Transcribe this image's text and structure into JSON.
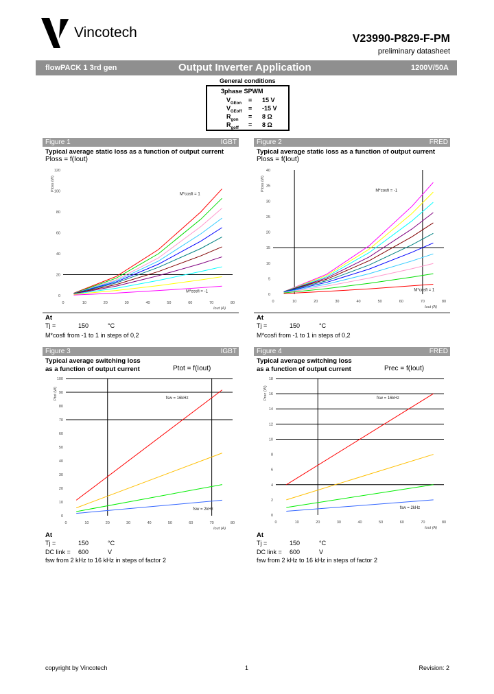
{
  "header": {
    "brand": "Vincotech",
    "part_number": "V23990-P829-F-PM",
    "doc_status": "preliminary datasheet",
    "band_left": "flowPACK 1 3rd gen",
    "band_center": "Output Inverter Application",
    "band_right": "1200V/50A"
  },
  "conditions": {
    "title": "General conditions",
    "mode": "3phase SPWM",
    "rows": [
      {
        "sym": "V",
        "sub": "GEon",
        "eq": "=",
        "val": "15 V"
      },
      {
        "sym": "V",
        "sub": "GEoff",
        "eq": "=",
        "val": "-15 V"
      },
      {
        "sym": "R",
        "sub": "gon",
        "eq": "=",
        "val": "8 Ω"
      },
      {
        "sym": "R",
        "sub": "goff",
        "eq": "=",
        "val": "8 Ω"
      }
    ]
  },
  "figures": [
    {
      "label": "Figure 1",
      "device": "IGBT",
      "title1": "Typical average static loss as a function of output current",
      "title2": "",
      "formula": "Ploss = f(Iout)",
      "at": "At",
      "t_label": "Tj =",
      "t_val": "150",
      "t_unit": "°C",
      "dc_label": "",
      "dc_val": "",
      "dc_unit": "",
      "note": "M*cosfi from -1 to 1 in steps of 0,2"
    },
    {
      "label": "Figure 2",
      "device": "FRED",
      "title1": "Typical average static loss as a function of output current",
      "title2": "",
      "formula": "Ploss = f(Iout)",
      "at": "At",
      "t_label": "Tj =",
      "t_val": "150",
      "t_unit": "°C",
      "dc_label": "",
      "dc_val": "",
      "dc_unit": "",
      "note": "M*cosfi from -1 to 1 in steps of 0,2"
    },
    {
      "label": "Figure 3",
      "device": "IGBT",
      "title1": "Typical average switching loss",
      "title2": "as a function of output current",
      "formula": "Ptot = f(Iout)",
      "at": "At",
      "t_label": "Tj =",
      "t_val": "150",
      "t_unit": "°C",
      "dc_label": "DC link =",
      "dc_val": "600",
      "dc_unit": "V",
      "note": "fsw from 2 kHz to 16 kHz in steps of factor 2"
    },
    {
      "label": "Figure 4",
      "device": "FRED",
      "title1": "Typical average switching loss",
      "title2": "as a function of output current",
      "formula": "Prec = f(Iout)",
      "at": "At",
      "t_label": "Tj =",
      "t_val": "150",
      "t_unit": "°C",
      "dc_label": "DC link =",
      "dc_val": "600",
      "dc_unit": "V",
      "note": "fsw from 2 kHz to 16 kHz in steps of factor 2"
    }
  ],
  "chart_data": [
    {
      "type": "line",
      "xlabel": "Iout (A)",
      "ylabel": "Ploss (W)",
      "xlim": [
        0,
        80
      ],
      "ylim": [
        0,
        120
      ],
      "xticks": [
        0,
        10,
        20,
        30,
        40,
        50,
        60,
        70,
        80
      ],
      "yticks": [
        0,
        20,
        40,
        60,
        80,
        100,
        120
      ],
      "hlines": [
        20
      ],
      "vlines": [],
      "annotations": [
        {
          "text": "M*cosfi = 1",
          "x": 55,
          "y": 96
        },
        {
          "text": "M*cosfi = -1",
          "x": 58,
          "y": 3
        }
      ],
      "x": [
        5,
        25,
        45,
        65,
        75
      ],
      "series": [
        {
          "color": "#ff0000",
          "values": [
            2.3,
            18.2,
            44,
            80,
            102
          ]
        },
        {
          "color": "#00dd00",
          "values": [
            2.1,
            16.6,
            40,
            73,
            93
          ]
        },
        {
          "color": "#ff99cc",
          "values": [
            2,
            15,
            36,
            66,
            83.5
          ]
        },
        {
          "color": "#33ccff",
          "values": [
            2,
            14,
            33,
            59,
            74
          ]
        },
        {
          "color": "#0000ff",
          "values": [
            2,
            13,
            30,
            52,
            65
          ]
        },
        {
          "color": "#008080",
          "values": [
            2,
            12,
            27,
            45,
            56
          ]
        },
        {
          "color": "#800000",
          "values": [
            1.8,
            10.5,
            23,
            38,
            46.6
          ]
        },
        {
          "color": "#800080",
          "values": [
            1.6,
            9,
            19,
            30.5,
            37
          ]
        },
        {
          "color": "#00ffff",
          "values": [
            1.4,
            7,
            14.5,
            23,
            27.5
          ]
        },
        {
          "color": "#ffff00",
          "values": [
            1.1,
            4.8,
            9.5,
            15,
            18
          ]
        },
        {
          "color": "#ff00ff",
          "values": [
            0.5,
            2.4,
            4.8,
            7.5,
            9
          ]
        }
      ]
    },
    {
      "type": "line",
      "xlabel": "Iout (A)",
      "ylabel": "Ploss (W)",
      "xlim": [
        0,
        80
      ],
      "ylim": [
        0,
        40
      ],
      "xticks": [
        0,
        10,
        20,
        30,
        40,
        50,
        60,
        70,
        80
      ],
      "yticks": [
        0,
        5,
        10,
        15,
        20,
        25,
        30,
        35,
        40
      ],
      "hlines": [
        15
      ],
      "vlines": [
        10,
        70
      ],
      "annotations": [
        {
          "text": "M*cosfi = -1",
          "x": 48,
          "y": 33
        },
        {
          "text": "M*cosfi = 1",
          "x": 66,
          "y": 1
        }
      ],
      "x": [
        5,
        25,
        45,
        65,
        75
      ],
      "series": [
        {
          "color": "#ff00ff",
          "values": [
            0.8,
            6.4,
            15.6,
            28.3,
            36
          ]
        },
        {
          "color": "#ffff00",
          "values": [
            0.8,
            6,
            14.5,
            26,
            32.9
          ]
        },
        {
          "color": "#00ffff",
          "values": [
            0.8,
            5.6,
            13.4,
            23.6,
            29.6
          ]
        },
        {
          "color": "#800080",
          "values": [
            0.8,
            5.2,
            12,
            21,
            26.3
          ]
        },
        {
          "color": "#800000",
          "values": [
            0.8,
            4.8,
            10.8,
            18.5,
            23
          ]
        },
        {
          "color": "#008080",
          "values": [
            0.8,
            4.3,
            9.4,
            15.9,
            19.6
          ]
        },
        {
          "color": "#0000ff",
          "values": [
            0.7,
            3.8,
            8.1,
            13.5,
            16.5
          ]
        },
        {
          "color": "#33ccff",
          "values": [
            0.6,
            3.2,
            6.6,
            10.7,
            13
          ]
        },
        {
          "color": "#ff99cc",
          "values": [
            0.5,
            2.6,
            5.2,
            8.2,
            9.9
          ]
        },
        {
          "color": "#00dd00",
          "values": [
            0.4,
            1.8,
            3.5,
            5.5,
            6.6
          ]
        },
        {
          "color": "#ff0000",
          "values": [
            0.2,
            0.9,
            1.7,
            2.7,
            3.2
          ]
        }
      ]
    },
    {
      "type": "line",
      "xlabel": "Iout (A)",
      "ylabel": "Ptot (W)",
      "xlim": [
        0,
        80
      ],
      "ylim": [
        0,
        100
      ],
      "xticks": [
        0,
        10,
        20,
        30,
        40,
        50,
        60,
        70,
        80
      ],
      "yticks": [
        0,
        10,
        20,
        30,
        40,
        50,
        60,
        70,
        80,
        90,
        100
      ],
      "hlines": [
        70,
        90,
        100
      ],
      "vlines": [
        20,
        70
      ],
      "annotations": [
        {
          "text": "fsw = 16kHz",
          "x": 48,
          "y": 85
        },
        {
          "text": "fsw = 2kHz",
          "x": 61,
          "y": 4
        }
      ],
      "x": [
        5,
        75
      ],
      "series": [
        {
          "name": "16kHz",
          "color": "#ff0000",
          "values": [
            11.3,
            91.7
          ]
        },
        {
          "color": "#ffbf00",
          "values": [
            5.7,
            45.7
          ]
        },
        {
          "color": "#00ee00",
          "values": [
            3,
            22.7
          ]
        },
        {
          "name": "2kHz",
          "color": "#3366ff",
          "values": [
            1.7,
            11.3
          ]
        }
      ]
    },
    {
      "type": "line",
      "xlabel": "Iout (A)",
      "ylabel": "Prec (W)",
      "xlim": [
        0,
        80
      ],
      "ylim": [
        0,
        18
      ],
      "xticks": [
        0,
        10,
        20,
        30,
        40,
        50,
        60,
        70,
        80
      ],
      "yticks": [
        0,
        2,
        4,
        6,
        8,
        10,
        12,
        14,
        16,
        18
      ],
      "hlines": [
        4,
        10,
        12,
        14,
        16,
        18
      ],
      "vlines": [
        20
      ],
      "annotations": [
        {
          "text": "fsw = 16kHz",
          "x": 48,
          "y": 15.3
        },
        {
          "text": "fsw = 2kHz",
          "x": 59,
          "y": 0.8
        }
      ],
      "x": [
        5,
        75
      ],
      "series": [
        {
          "name": "16kHz",
          "color": "#ff0000",
          "values": [
            4,
            16
          ]
        },
        {
          "color": "#ffbf00",
          "values": [
            2,
            8
          ]
        },
        {
          "color": "#00ee00",
          "values": [
            1,
            4
          ]
        },
        {
          "name": "2kHz",
          "color": "#3366ff",
          "values": [
            0.5,
            2
          ]
        }
      ]
    }
  ],
  "footer": {
    "copyright": "copyright by Vincotech",
    "page": "1",
    "revision": "Revision: 2"
  }
}
